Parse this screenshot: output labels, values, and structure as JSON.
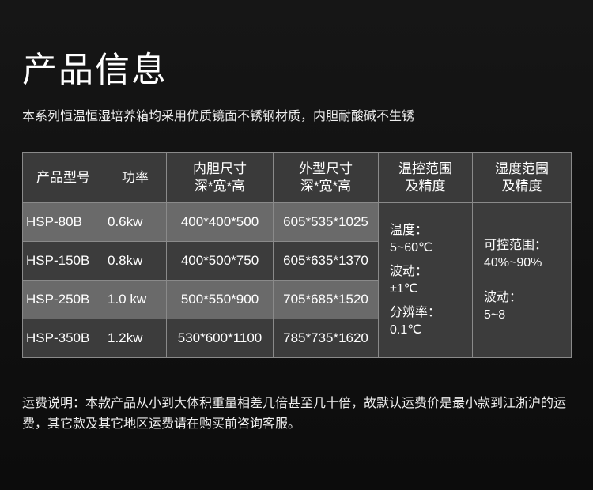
{
  "title": "产品信息",
  "subtitle": "本系列恒温恒湿培养箱均采用优质镜面不锈钢材质，内胆耐酸碱不生锈",
  "table": {
    "headers": [
      [
        "产品型号"
      ],
      [
        "功率"
      ],
      [
        "内胆尺寸",
        "深*宽*高"
      ],
      [
        "外型尺寸",
        "深*宽*高"
      ],
      [
        "温控范围",
        "及精度"
      ],
      [
        "湿度范围",
        "及精度"
      ]
    ],
    "rows": [
      [
        "HSP-80B",
        "0.6kw",
        "400*400*500",
        "605*535*1025"
      ],
      [
        "HSP-150B",
        "0.8kw",
        "400*500*750",
        "605*635*1370"
      ],
      [
        "HSP-250B",
        "1.0 kw",
        "500*550*900",
        "705*685*1520"
      ],
      [
        "HSP-350B",
        "1.2kw",
        "530*600*1100",
        "785*735*1620"
      ]
    ],
    "temp": [
      "温度：",
      "5~60℃",
      "波动：",
      "±1℃",
      "分辨率：",
      "0.1℃"
    ],
    "humidity": [
      "可控范围：",
      "40%~90%",
      "波动：",
      "5~8"
    ]
  },
  "note": "运费说明：本款产品从小到大体积重量相差几倍甚至几十倍，故默认运费价是最小款到江浙沪的运费，其它款及其它地区运费请在购买前咨询客服。"
}
